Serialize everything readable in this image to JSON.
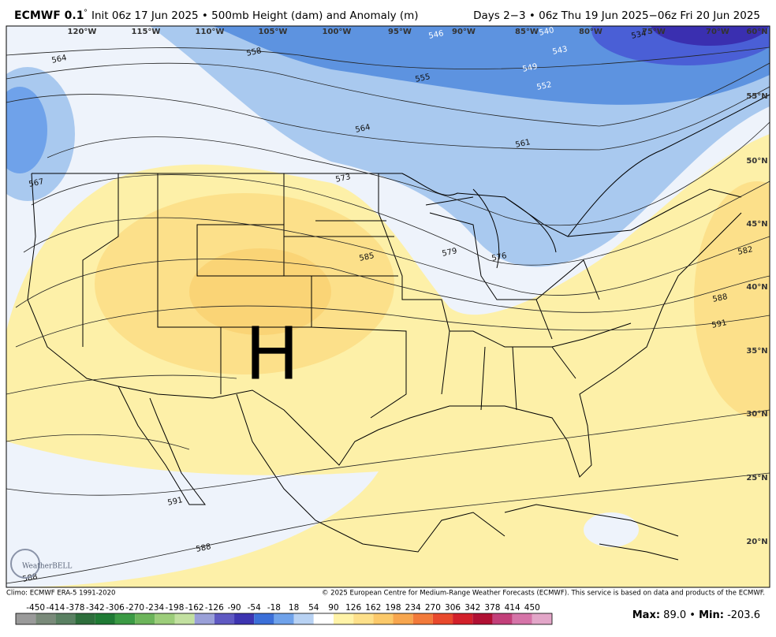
{
  "header": {
    "model": "ECMWF 0.1",
    "degree": "°",
    "init": "Init 06z 17 Jun 2025 • 500mb Height (dam) and Anomaly (m)",
    "valid": "Days 2−3 • 06z Thu 19 Jun 2025−06z Fri 20 Jun 2025"
  },
  "map": {
    "longitude_labels": [
      "120°W",
      "115°W",
      "110°W",
      "105°W",
      "100°W",
      "95°W",
      "90°W",
      "85°W",
      "80°W",
      "75°W",
      "70°W",
      "60°N"
    ],
    "latitude_labels": [
      "55°N",
      "50°N",
      "45°N",
      "40°N",
      "35°N",
      "30°N",
      "25°N",
      "20°N"
    ],
    "contour_labels": [
      "564",
      "558",
      "555",
      "546",
      "540",
      "543",
      "534",
      "549",
      "552",
      "564",
      "561",
      "573",
      "579",
      "576",
      "585",
      "582",
      "588",
      "591",
      "591",
      "588",
      "588",
      "567"
    ],
    "high_label": "H",
    "logo": "WeatherBELL"
  },
  "footer": {
    "climo": "Climo: ECMWF ERA-5 1991-2020",
    "copyright": "© 2025 European Centre for Medium-Range Weather Forecasts (ECMWF). This service is based on data and products of the ECMWF."
  },
  "colorbar": {
    "labels": [
      -450,
      -414,
      -378,
      -342,
      -306,
      -270,
      -234,
      -198,
      -162,
      -126,
      -90,
      -54,
      -18,
      18,
      54,
      90,
      126,
      162,
      198,
      234,
      270,
      306,
      342,
      378,
      414,
      450
    ],
    "colors": [
      "#9a9a9a",
      "#7a8a7a",
      "#5a8062",
      "#2e6e3c",
      "#1f7a34",
      "#3b9a44",
      "#6cb45a",
      "#9ccd7a",
      "#c2e0a0",
      "#9aa0d8",
      "#5f59c2",
      "#3d34b0",
      "#3b6fd8",
      "#6fa2ea",
      "#b8d2f3",
      "#ffffff",
      "#fff3a8",
      "#fde08a",
      "#fbc96a",
      "#f7a64e",
      "#f27a3a",
      "#e8492c",
      "#d2202a",
      "#b01033",
      "#c2407a",
      "#d574a8",
      "#e2a6c8"
    ]
  },
  "stats": {
    "max_label": "Max:",
    "max": "89.0",
    "separator": "•",
    "min_label": "Min:",
    "min": "-203.6"
  }
}
